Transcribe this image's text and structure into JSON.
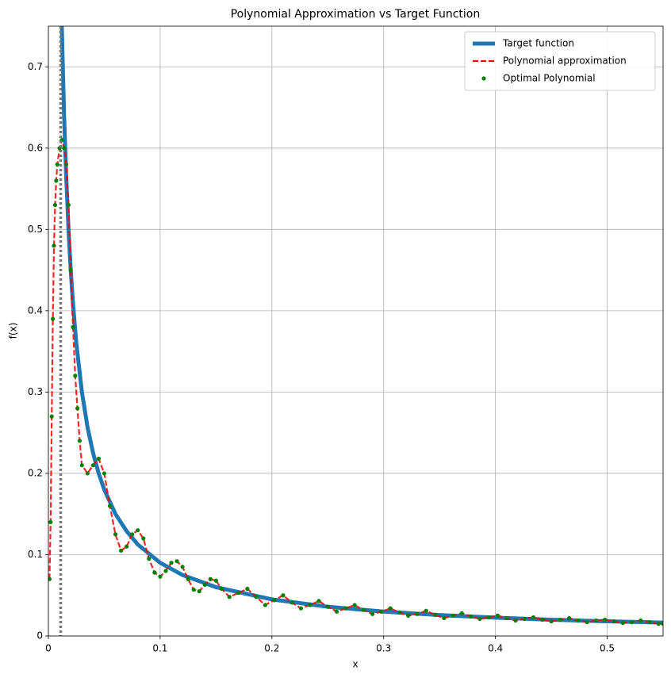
{
  "chart_data": {
    "type": "line",
    "title": "Polynomial Approximation vs Target Function",
    "xlabel": "x",
    "ylabel": "f(x)",
    "xlim": [
      0,
      0.55
    ],
    "ylim": [
      0,
      0.75
    ],
    "xticks": [
      0.0,
      0.1,
      0.2,
      0.3,
      0.4,
      0.5
    ],
    "yticks": [
      0.0,
      0.1,
      0.2,
      0.3,
      0.4,
      0.5,
      0.6,
      0.7
    ],
    "grid": true,
    "legend": "upper right",
    "vline": {
      "x": 0.011,
      "color": "#777777"
    },
    "x": [
      0.001,
      0.002,
      0.003,
      0.004,
      0.005,
      0.006,
      0.007,
      0.008,
      0.01,
      0.012,
      0.014,
      0.016,
      0.018,
      0.02,
      0.022,
      0.024,
      0.026,
      0.028,
      0.03,
      0.035,
      0.04,
      0.045,
      0.05,
      0.055,
      0.06,
      0.065,
      0.07,
      0.075,
      0.08,
      0.085,
      0.09,
      0.095,
      0.1,
      0.105,
      0.11,
      0.115,
      0.12,
      0.125,
      0.13,
      0.135,
      0.14,
      0.145,
      0.15,
      0.155,
      0.162,
      0.17,
      0.178,
      0.186,
      0.194,
      0.202,
      0.21,
      0.218,
      0.226,
      0.234,
      0.242,
      0.25,
      0.258,
      0.266,
      0.274,
      0.282,
      0.29,
      0.298,
      0.306,
      0.314,
      0.322,
      0.33,
      0.338,
      0.346,
      0.354,
      0.362,
      0.37,
      0.378,
      0.386,
      0.394,
      0.402,
      0.41,
      0.418,
      0.426,
      0.434,
      0.442,
      0.45,
      0.458,
      0.466,
      0.474,
      0.482,
      0.49,
      0.498,
      0.506,
      0.514,
      0.522,
      0.53,
      0.538,
      0.546,
      0.55
    ],
    "series": [
      {
        "name": "Target function",
        "color": "#1f77b4",
        "linestyle": "solid",
        "marker": "none",
        "x": [
          0.012,
          0.014,
          0.016,
          0.018,
          0.02,
          0.022,
          0.025,
          0.03,
          0.035,
          0.04,
          0.045,
          0.05,
          0.06,
          0.07,
          0.08,
          0.1,
          0.12,
          0.15,
          0.2,
          0.25,
          0.3,
          0.35,
          0.4,
          0.45,
          0.5,
          0.55
        ],
        "values": [
          0.75,
          0.643,
          0.563,
          0.5,
          0.45,
          0.409,
          0.36,
          0.3,
          0.257,
          0.225,
          0.2,
          0.18,
          0.15,
          0.129,
          0.1125,
          0.09,
          0.075,
          0.06,
          0.045,
          0.036,
          0.03,
          0.0257,
          0.0225,
          0.02,
          0.018,
          0.0164
        ]
      },
      {
        "name": "Polynomial approximation",
        "color": "#ff0000",
        "linestyle": "dashed",
        "marker": "none",
        "values": [
          0.07,
          0.14,
          0.27,
          0.39,
          0.48,
          0.53,
          0.56,
          0.58,
          0.6,
          0.61,
          0.6,
          0.58,
          0.53,
          0.45,
          0.38,
          0.32,
          0.28,
          0.24,
          0.21,
          0.2,
          0.21,
          0.218,
          0.2,
          0.16,
          0.125,
          0.105,
          0.11,
          0.125,
          0.13,
          0.12,
          0.095,
          0.078,
          0.073,
          0.08,
          0.09,
          0.092,
          0.085,
          0.07,
          0.057,
          0.055,
          0.063,
          0.07,
          0.068,
          0.058,
          0.048,
          0.053,
          0.058,
          0.048,
          0.038,
          0.044,
          0.05,
          0.041,
          0.034,
          0.038,
          0.043,
          0.036,
          0.03,
          0.034,
          0.038,
          0.032,
          0.027,
          0.03,
          0.034,
          0.029,
          0.025,
          0.027,
          0.031,
          0.026,
          0.022,
          0.025,
          0.028,
          0.024,
          0.021,
          0.023,
          0.025,
          0.022,
          0.019,
          0.021,
          0.023,
          0.02,
          0.018,
          0.02,
          0.022,
          0.019,
          0.017,
          0.019,
          0.02,
          0.018,
          0.016,
          0.017,
          0.019,
          0.017,
          0.015,
          0.015
        ]
      },
      {
        "name": "Optimal Polynomial",
        "color": "#008000",
        "linestyle": "none",
        "marker": "o",
        "values": [
          0.07,
          0.14,
          0.27,
          0.39,
          0.48,
          0.53,
          0.56,
          0.58,
          0.6,
          0.61,
          0.6,
          0.58,
          0.53,
          0.45,
          0.38,
          0.32,
          0.28,
          0.24,
          0.21,
          0.2,
          0.21,
          0.218,
          0.2,
          0.16,
          0.125,
          0.105,
          0.11,
          0.125,
          0.13,
          0.12,
          0.095,
          0.078,
          0.073,
          0.08,
          0.09,
          0.092,
          0.085,
          0.07,
          0.057,
          0.055,
          0.063,
          0.07,
          0.068,
          0.058,
          0.048,
          0.053,
          0.058,
          0.048,
          0.038,
          0.044,
          0.05,
          0.041,
          0.034,
          0.038,
          0.043,
          0.036,
          0.03,
          0.034,
          0.038,
          0.032,
          0.027,
          0.03,
          0.034,
          0.029,
          0.025,
          0.027,
          0.031,
          0.026,
          0.022,
          0.025,
          0.028,
          0.024,
          0.021,
          0.023,
          0.025,
          0.022,
          0.019,
          0.021,
          0.023,
          0.02,
          0.018,
          0.02,
          0.022,
          0.019,
          0.017,
          0.019,
          0.02,
          0.018,
          0.016,
          0.017,
          0.019,
          0.017,
          0.015,
          0.015
        ]
      }
    ]
  }
}
